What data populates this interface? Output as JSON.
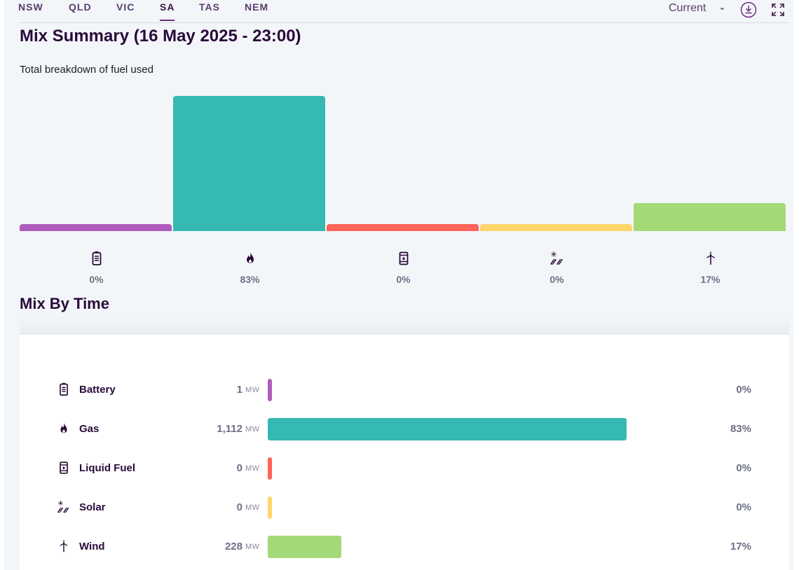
{
  "tabs": [
    {
      "label": "NSW",
      "active": false
    },
    {
      "label": "QLD",
      "active": false
    },
    {
      "label": "VIC",
      "active": false
    },
    {
      "label": "SA",
      "active": true
    },
    {
      "label": "TAS",
      "active": false
    },
    {
      "label": "NEM",
      "active": false
    }
  ],
  "toolbar": {
    "period_select": "Current",
    "icons": [
      "chevron-down-icon",
      "download-icon",
      "fullscreen-icon"
    ]
  },
  "summary": {
    "title": "Mix Summary (16 May 2025 - 23:00)",
    "subtitle": "Total breakdown of fuel used"
  },
  "mix_by_time": {
    "title": "Mix By Time",
    "unit": "MW"
  },
  "fuels": [
    {
      "name": "Battery",
      "icon": "battery-icon",
      "mw": "1",
      "pct": "0%",
      "pct_value": 0,
      "color": "#b05cbc"
    },
    {
      "name": "Gas",
      "icon": "flame-icon",
      "mw": "1,112",
      "pct": "83%",
      "pct_value": 83,
      "color": "#35b9b2"
    },
    {
      "name": "Liquid Fuel",
      "icon": "fuel-barrel-icon",
      "mw": "0",
      "pct": "0%",
      "pct_value": 0,
      "color": "#ff6359"
    },
    {
      "name": "Solar",
      "icon": "solar-icon",
      "mw": "0",
      "pct": "0%",
      "pct_value": 0,
      "color": "#ffd66b"
    },
    {
      "name": "Wind",
      "icon": "wind-turbine-icon",
      "mw": "228",
      "pct": "17%",
      "pct_value": 17,
      "color": "#a3d977"
    }
  ],
  "chart_data": {
    "type": "bar",
    "categories": [
      "Battery",
      "Gas",
      "Liquid Fuel",
      "Solar",
      "Wind"
    ],
    "values": [
      0,
      83,
      0,
      0,
      17
    ],
    "mw_values": [
      1,
      1112,
      0,
      0,
      228
    ],
    "title": "Mix Summary (16 May 2025 - 23:00)",
    "subtitle": "Total breakdown of fuel used",
    "colors": [
      "#b05cbc",
      "#35b9b2",
      "#ff6359",
      "#ffd66b",
      "#a3d977"
    ]
  }
}
